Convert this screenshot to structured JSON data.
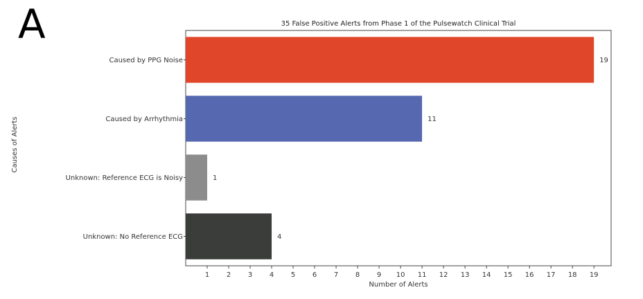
{
  "panel_label": "A",
  "chart_data": {
    "type": "bar",
    "orientation": "horizontal",
    "title": "35 False Positive Alerts from Phase 1 of the Pulsewatch Clinical Trial",
    "xlabel": "Number of Alerts",
    "ylabel": "Causes of Alerts",
    "categories": [
      "Caused by PPG Noise",
      "Caused by Arrhythmia",
      "Unknown: Reference ECG is Noisy",
      "Unknown: No Reference ECG"
    ],
    "values": [
      19,
      11,
      1,
      4
    ],
    "value_labels": [
      "19",
      "11",
      "1",
      "4"
    ],
    "colors": [
      "#e0472a",
      "#5568b0",
      "#8c8c8c",
      "#3a3d3a"
    ],
    "xlim": [
      0,
      19.8
    ],
    "xticks": [
      "1",
      "2",
      "3",
      "4",
      "5",
      "6",
      "7",
      "8",
      "9",
      "10",
      "11",
      "12",
      "13",
      "14",
      "15",
      "16",
      "17",
      "18",
      "19"
    ],
    "grid": false
  }
}
